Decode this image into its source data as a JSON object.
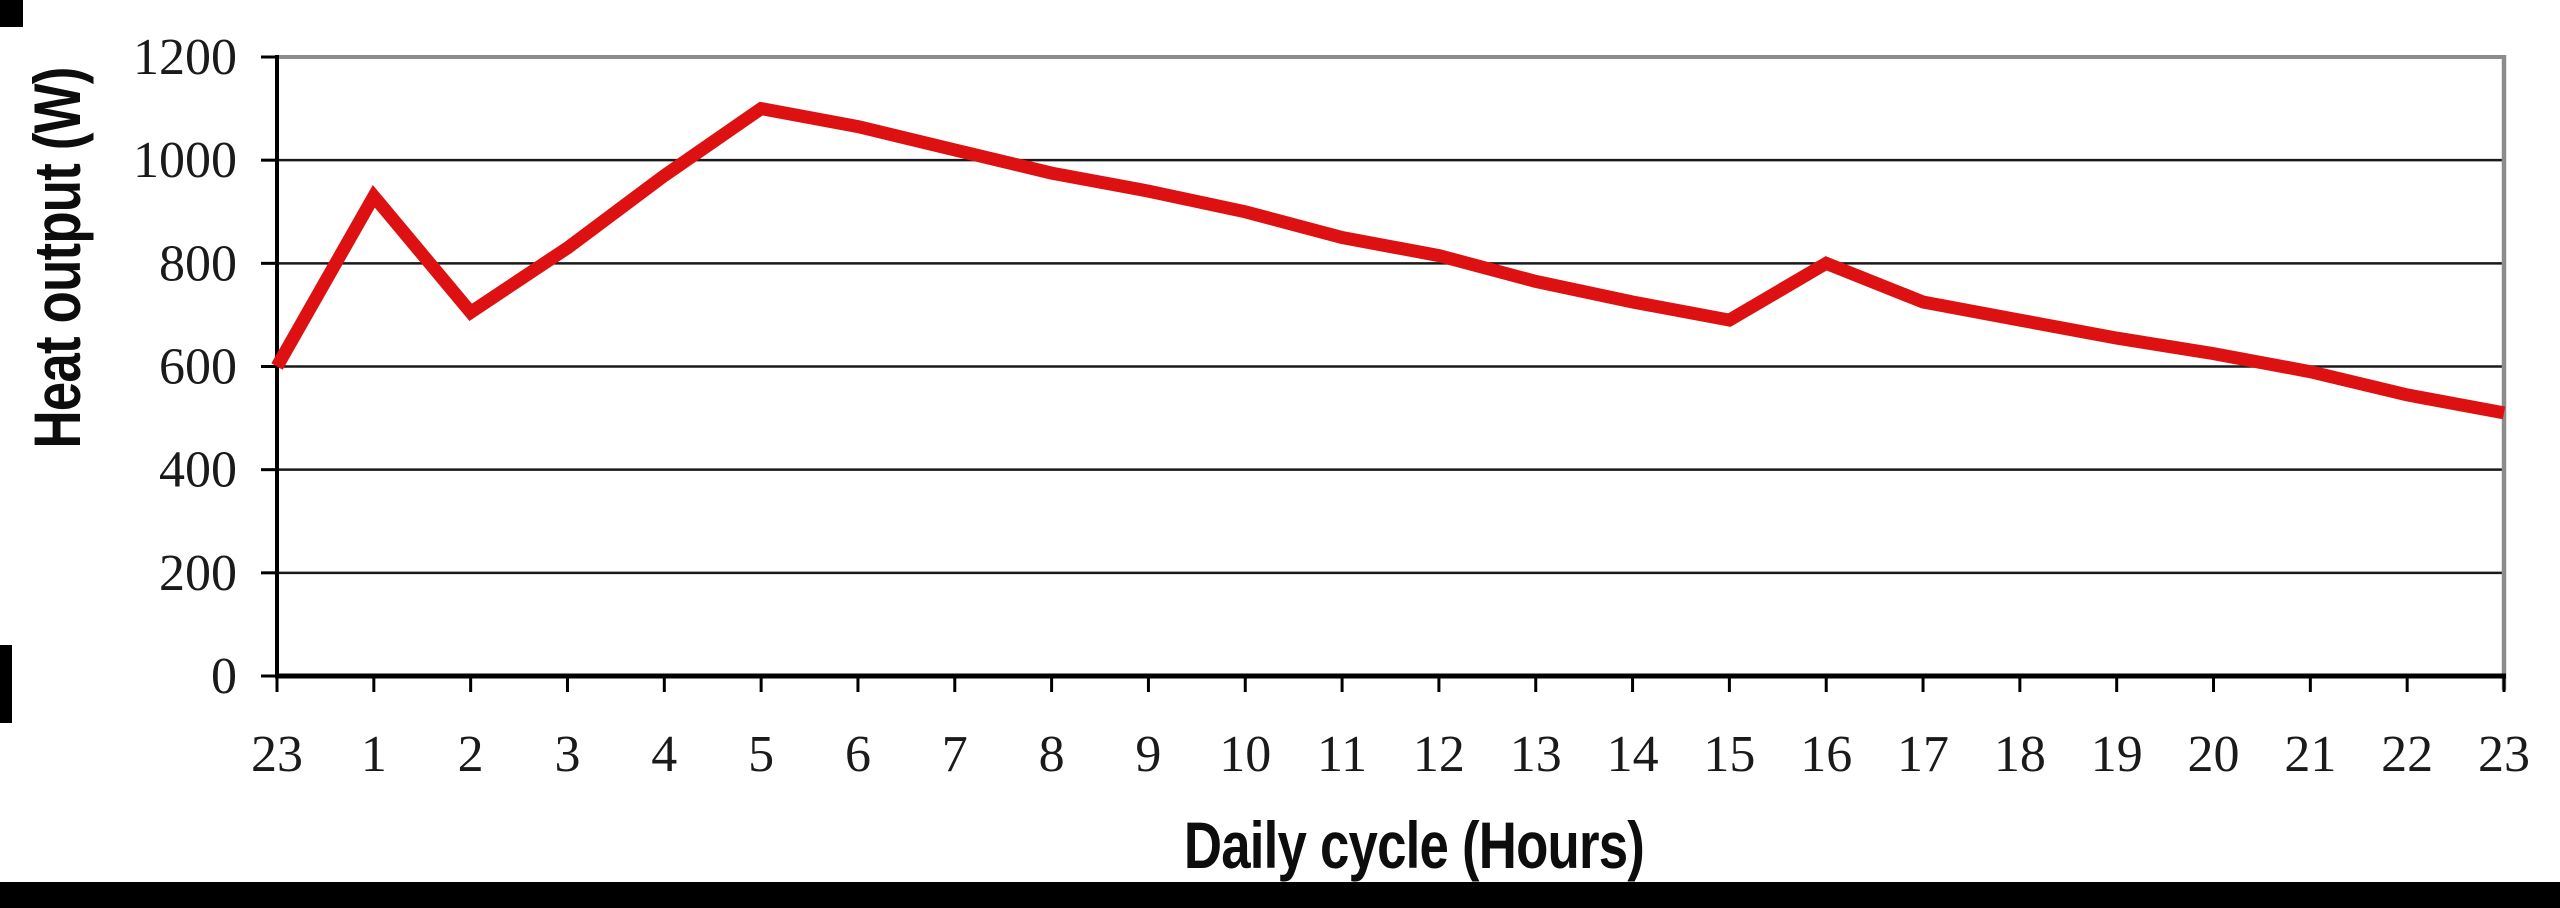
{
  "chart_data": {
    "type": "line",
    "title": "",
    "xlabel": "Daily cycle (Hours)",
    "ylabel": "Heat output (W)",
    "categories": [
      "23",
      "1",
      "2",
      "3",
      "4",
      "5",
      "6",
      "7",
      "8",
      "9",
      "10",
      "11",
      "12",
      "13",
      "14",
      "15",
      "16",
      "17",
      "18",
      "19",
      "20",
      "21",
      "22",
      "23"
    ],
    "series": [
      {
        "name": "Heat output",
        "color": "#dd1111",
        "values": [
          600,
          930,
          705,
          830,
          970,
          1100,
          1065,
          1020,
          975,
          940,
          900,
          850,
          815,
          765,
          725,
          690,
          800,
          725,
          690,
          655,
          625,
          590,
          545,
          510
        ]
      }
    ],
    "y_ticks": [
      0,
      200,
      400,
      600,
      800,
      1000,
      1200
    ],
    "ylim": [
      0,
      1200
    ],
    "grid": "horizontal",
    "legend": "none"
  },
  "colors": {
    "line": "#dd1111",
    "gridline": "#1a1a1a",
    "border_dark": "#000000",
    "border_gray": "#8c8c8c",
    "tick": "#000000",
    "label_text": "#1a1a1a",
    "background": "#ffffff",
    "scan_artifact": "#000000"
  }
}
